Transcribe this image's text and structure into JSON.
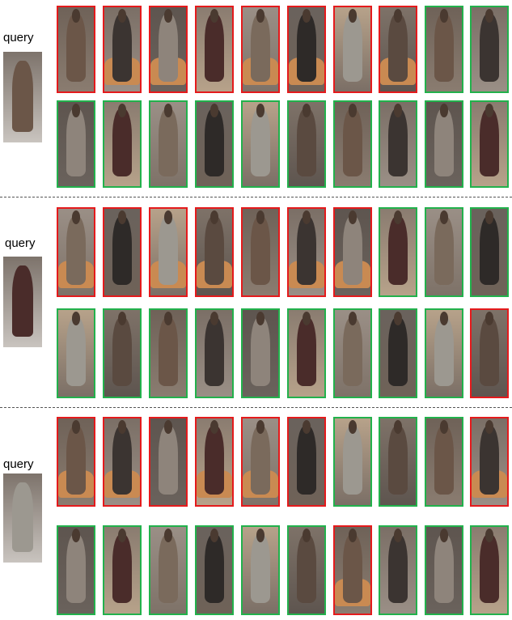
{
  "query_label": "query",
  "colors": {
    "correct": "#22b14c",
    "incorrect": "#e41a1c"
  },
  "groups": [
    {
      "rows": [
        [
          "incorrect",
          "incorrect",
          "incorrect",
          "incorrect",
          "incorrect",
          "incorrect",
          "incorrect",
          "incorrect",
          "correct",
          "correct"
        ],
        [
          "correct",
          "correct",
          "correct",
          "correct",
          "correct",
          "correct",
          "correct",
          "correct",
          "correct",
          "correct"
        ]
      ]
    },
    {
      "rows": [
        [
          "incorrect",
          "incorrect",
          "incorrect",
          "incorrect",
          "incorrect",
          "incorrect",
          "incorrect",
          "correct",
          "correct",
          "correct"
        ],
        [
          "correct",
          "correct",
          "correct",
          "correct",
          "correct",
          "correct",
          "correct",
          "correct",
          "correct",
          "incorrect"
        ]
      ]
    },
    {
      "rows": [
        [
          "incorrect",
          "incorrect",
          "incorrect",
          "incorrect",
          "incorrect",
          "incorrect",
          "correct",
          "correct",
          "correct",
          "incorrect"
        ],
        [
          "correct",
          "correct",
          "correct",
          "correct",
          "correct",
          "correct",
          "incorrect",
          "correct",
          "correct",
          "correct"
        ]
      ]
    }
  ]
}
